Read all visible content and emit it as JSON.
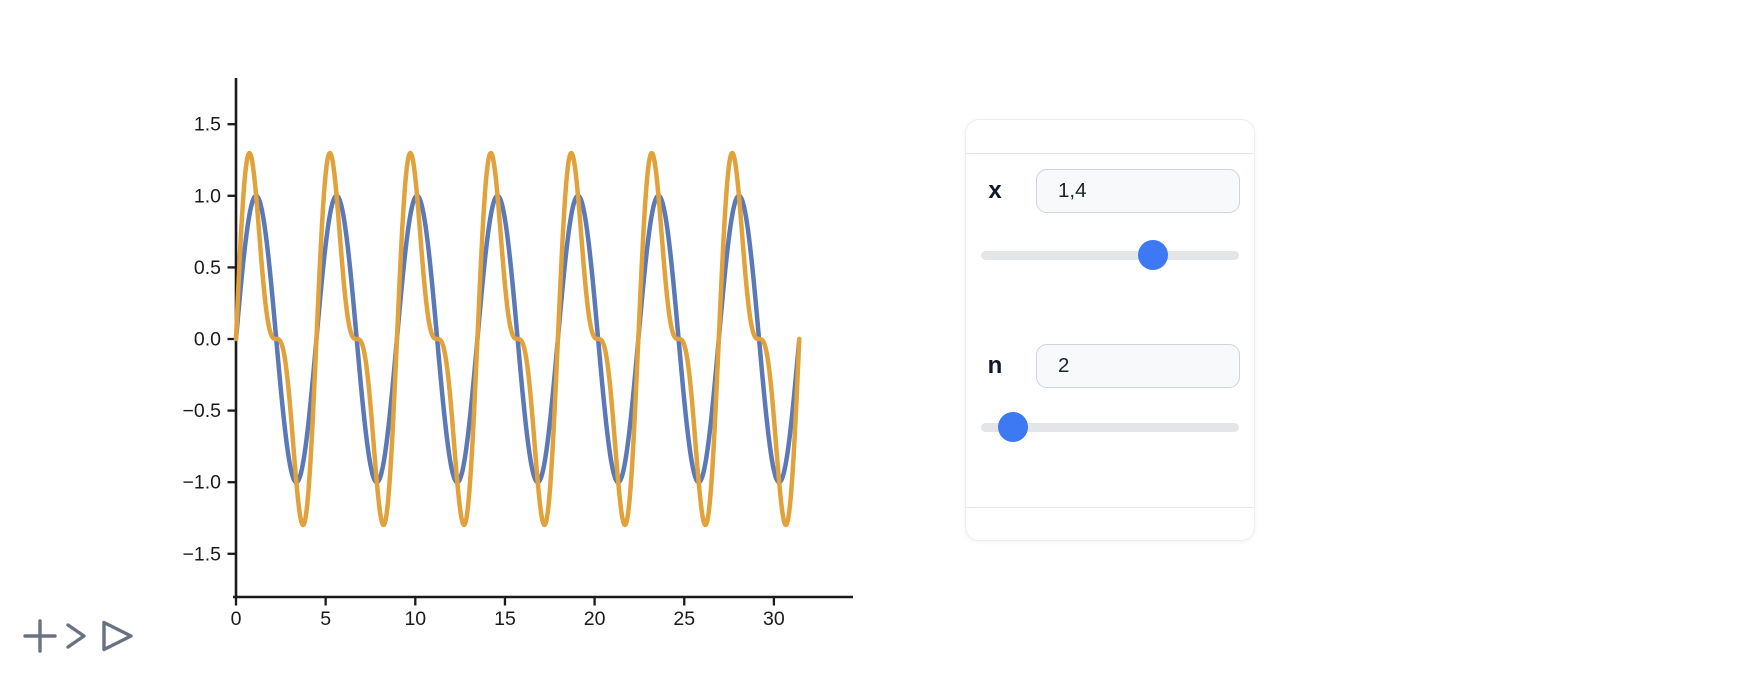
{
  "chart_data": {
    "type": "line",
    "title": "",
    "xlabel": "",
    "ylabel": "",
    "grid": false,
    "legend": null,
    "x_range": [
      0,
      31.4159
    ],
    "xlim": [
      0,
      34.4
    ],
    "ylim": [
      -1.8,
      1.82
    ],
    "axis_color": "#1a1a1a",
    "xticks": {
      "values": [
        0,
        5,
        10,
        15,
        20,
        25,
        30
      ],
      "labels": [
        "0",
        "5",
        "10",
        "15",
        "20",
        "25",
        "30"
      ]
    },
    "yticks": {
      "values": [
        1.5,
        1.0,
        0.5,
        0.0,
        -0.5,
        -1.0,
        -1.5
      ],
      "labels": [
        "1.5",
        "1.0",
        "0.5",
        "0.0",
        "−0.5",
        "−1.0",
        "−1.5"
      ]
    },
    "series": [
      {
        "type": "harmonic_sum",
        "frequency": 1.4,
        "harmonics": 1,
        "amplitude_peak": 1.0,
        "color": "#5a79b6",
        "stroke_width": 4.5
      },
      {
        "type": "harmonic_sum",
        "frequency": 1.4,
        "harmonics": 2,
        "amplitude_peak": 1.3,
        "color": "#e1a23c",
        "stroke_width": 4.5
      }
    ]
  },
  "controls": {
    "accent_color": "#3c79f2",
    "sliders": [
      {
        "label": "x",
        "value_display": "1,4",
        "value": 1.4,
        "thumb_percent": 69
      },
      {
        "label": "n",
        "value_display": "2",
        "value": 2,
        "thumb_percent": 7.5
      }
    ]
  },
  "toolbar": {
    "icon_color": "#6a7282",
    "buttons": [
      {
        "icon": "plus"
      },
      {
        "icon": "chevron-right"
      },
      {
        "icon": "play"
      }
    ]
  }
}
